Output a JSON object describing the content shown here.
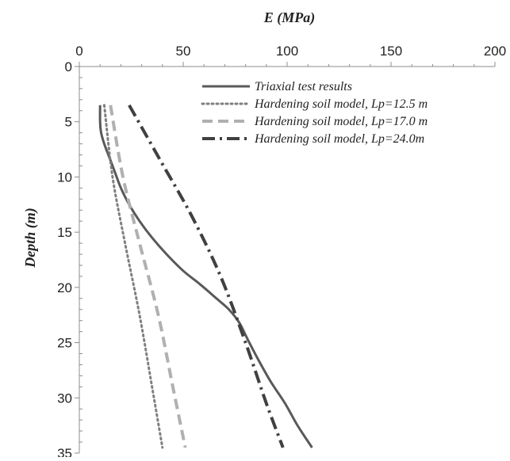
{
  "chart_data": {
    "type": "line",
    "title": "",
    "xlabel": "E (MPa)",
    "ylabel": "Depth (m)",
    "x_axis_position": "top",
    "y_axis_inverted": true,
    "xlim": [
      0,
      200
    ],
    "ylim": [
      0,
      35
    ],
    "xticks": [
      "0",
      "50",
      "100",
      "150",
      "200"
    ],
    "yticks": [
      "0",
      "5",
      "10",
      "15",
      "20",
      "25",
      "30",
      "35"
    ],
    "grid": false,
    "legend_position": "top-right",
    "series": [
      {
        "name": "Triaxial test results",
        "style": "solid",
        "color": "#595959",
        "points": [
          [
            10,
            3.5
          ],
          [
            10,
            5
          ],
          [
            10.5,
            6
          ],
          [
            12,
            7
          ],
          [
            14,
            8
          ],
          [
            17,
            9.5
          ],
          [
            20,
            11
          ],
          [
            24,
            12.5
          ],
          [
            29,
            14
          ],
          [
            35,
            15.5
          ],
          [
            42,
            17
          ],
          [
            50,
            18.5
          ],
          [
            58,
            19.7
          ],
          [
            66,
            21
          ],
          [
            72,
            22
          ],
          [
            77,
            23.2
          ],
          [
            81,
            24.7
          ],
          [
            86,
            26.5
          ],
          [
            92,
            28.5
          ],
          [
            99,
            30.5
          ],
          [
            105,
            32.5
          ],
          [
            112,
            34.5
          ]
        ]
      },
      {
        "name": "Hardening soil model, Lp=12.5 m",
        "style": "dotted",
        "color": "#7f7f7f",
        "points": [
          [
            12,
            3.5
          ],
          [
            16,
            10
          ],
          [
            22,
            16
          ],
          [
            29,
            22.5
          ],
          [
            35,
            29
          ],
          [
            40,
            34.5
          ]
        ]
      },
      {
        "name": "Hardening soil model, Lp=17.0 m",
        "style": "dashed",
        "color": "#b0b0b0",
        "points": [
          [
            15,
            3.5
          ],
          [
            21,
            10
          ],
          [
            29,
            16
          ],
          [
            38,
            22.5
          ],
          [
            45,
            29
          ],
          [
            51,
            34.5
          ]
        ]
      },
      {
        "name": "Hardening soil model, Lp=24.0m",
        "style": "dash-dot",
        "color": "#404040",
        "points": [
          [
            24,
            3.5
          ],
          [
            39,
            8.5
          ],
          [
            54,
            13.5
          ],
          [
            68,
            19
          ],
          [
            80,
            25
          ],
          [
            90,
            30.5
          ],
          [
            98,
            34.5
          ]
        ]
      }
    ]
  }
}
